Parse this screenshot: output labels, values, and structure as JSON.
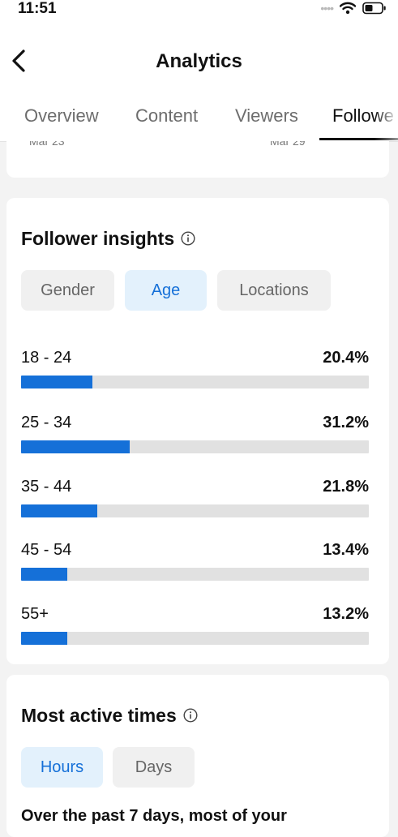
{
  "status": {
    "time": "11:51",
    "signal": "••••"
  },
  "header": {
    "title": "Analytics",
    "tabs": [
      {
        "label": "Overview",
        "active": false
      },
      {
        "label": "Content",
        "active": false
      },
      {
        "label": "Viewers",
        "active": false
      },
      {
        "label": "Followe",
        "active": true
      }
    ]
  },
  "prev_card": {
    "left_label": "Mar 23",
    "right_label": "Mar 29"
  },
  "follower_insights": {
    "title": "Follower insights",
    "filters": [
      {
        "label": "Gender",
        "active": false
      },
      {
        "label": "Age",
        "active": true
      },
      {
        "label": "Locations",
        "active": false
      }
    ],
    "ages": [
      {
        "range": "18 - 24",
        "percent": "20.4%",
        "value": 20.4
      },
      {
        "range": "25 - 34",
        "percent": "31.2%",
        "value": 31.2
      },
      {
        "range": "35 - 44",
        "percent": "21.8%",
        "value": 21.8
      },
      {
        "range": "45 - 54",
        "percent": "13.4%",
        "value": 13.4
      },
      {
        "range": "55+",
        "percent": "13.2%",
        "value": 13.2
      }
    ]
  },
  "most_active": {
    "title": "Most active times",
    "filters": [
      {
        "label": "Hours",
        "active": true
      },
      {
        "label": "Days",
        "active": false
      }
    ],
    "summary": "Over the past 7 days, most of your"
  },
  "colors": {
    "accent": "#1570d8",
    "chip_active_bg": "#e3f1fc",
    "track": "#e1e1e1"
  }
}
